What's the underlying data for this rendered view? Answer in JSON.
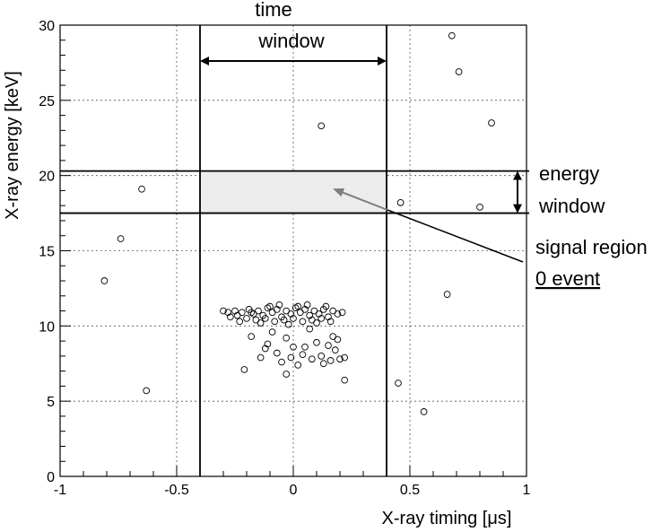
{
  "chart_data": {
    "type": "scatter",
    "xlabel": "X-ray timing [μs]",
    "ylabel": "X-ray energy [keV]",
    "xlim": [
      -1,
      1
    ],
    "ylim": [
      0,
      30
    ],
    "x_ticks": [
      -1,
      -0.5,
      0,
      0.5,
      1
    ],
    "y_ticks": [
      0,
      5,
      10,
      15,
      20,
      25,
      30
    ],
    "grid": true,
    "time_window": [
      -0.4,
      0.4
    ],
    "energy_window": [
      17.5,
      20.3
    ],
    "annotations": {
      "time_window": [
        "time",
        "window"
      ],
      "energy_window": [
        "energy",
        "window"
      ],
      "signal_region": [
        "signal region",
        "0 event"
      ]
    },
    "points": [
      {
        "x": 0.68,
        "y": 29.3
      },
      {
        "x": 0.71,
        "y": 26.9
      },
      {
        "x": 0.12,
        "y": 23.3
      },
      {
        "x": 0.85,
        "y": 23.5
      },
      {
        "x": -0.65,
        "y": 19.1
      },
      {
        "x": 0.46,
        "y": 18.2
      },
      {
        "x": 0.8,
        "y": 17.9
      },
      {
        "x": -0.74,
        "y": 15.8
      },
      {
        "x": -0.81,
        "y": 13.0
      },
      {
        "x": 0.66,
        "y": 12.1
      },
      {
        "x": -0.63,
        "y": 5.7
      },
      {
        "x": 0.45,
        "y": 6.2
      },
      {
        "x": 0.56,
        "y": 4.3
      },
      {
        "x": -0.28,
        "y": 10.9
      },
      {
        "x": -0.25,
        "y": 11.0
      },
      {
        "x": -0.22,
        "y": 10.9
      },
      {
        "x": -0.19,
        "y": 11.1
      },
      {
        "x": -0.17,
        "y": 10.8
      },
      {
        "x": -0.15,
        "y": 11.0
      },
      {
        "x": -0.13,
        "y": 10.7
      },
      {
        "x": -0.11,
        "y": 11.2
      },
      {
        "x": -0.09,
        "y": 10.9
      },
      {
        "x": -0.07,
        "y": 11.1
      },
      {
        "x": -0.05,
        "y": 10.6
      },
      {
        "x": -0.03,
        "y": 11.0
      },
      {
        "x": -0.01,
        "y": 10.8
      },
      {
        "x": 0.01,
        "y": 11.2
      },
      {
        "x": 0.03,
        "y": 10.9
      },
      {
        "x": 0.05,
        "y": 11.1
      },
      {
        "x": 0.07,
        "y": 10.7
      },
      {
        "x": 0.09,
        "y": 11.0
      },
      {
        "x": 0.11,
        "y": 10.8
      },
      {
        "x": 0.13,
        "y": 11.1
      },
      {
        "x": 0.15,
        "y": 10.6
      },
      {
        "x": 0.17,
        "y": 11.0
      },
      {
        "x": 0.19,
        "y": 10.8
      },
      {
        "x": -0.2,
        "y": 10.5
      },
      {
        "x": -0.16,
        "y": 10.4
      },
      {
        "x": -0.12,
        "y": 10.5
      },
      {
        "x": -0.08,
        "y": 10.3
      },
      {
        "x": -0.04,
        "y": 10.4
      },
      {
        "x": 0.0,
        "y": 10.5
      },
      {
        "x": 0.04,
        "y": 10.3
      },
      {
        "x": 0.08,
        "y": 10.4
      },
      {
        "x": 0.12,
        "y": 10.5
      },
      {
        "x": -0.1,
        "y": 11.3
      },
      {
        "x": -0.06,
        "y": 11.4
      },
      {
        "x": 0.02,
        "y": 11.3
      },
      {
        "x": 0.06,
        "y": 11.4
      },
      {
        "x": -0.24,
        "y": 10.7
      },
      {
        "x": 0.21,
        "y": 10.9
      },
      {
        "x": -0.3,
        "y": 11.0
      },
      {
        "x": -0.27,
        "y": 10.6
      },
      {
        "x": 0.16,
        "y": 10.3
      },
      {
        "x": -0.14,
        "y": 10.2
      },
      {
        "x": 0.1,
        "y": 10.2
      },
      {
        "x": -0.02,
        "y": 10.1
      },
      {
        "x": 0.14,
        "y": 11.3
      },
      {
        "x": -0.18,
        "y": 10.9
      },
      {
        "x": -0.23,
        "y": 10.3
      },
      {
        "x": -0.11,
        "y": 8.8
      },
      {
        "x": -0.03,
        "y": 9.2
      },
      {
        "x": 0.05,
        "y": 8.6
      },
      {
        "x": 0.1,
        "y": 8.9
      },
      {
        "x": 0.15,
        "y": 8.7
      },
      {
        "x": 0.18,
        "y": 8.4
      },
      {
        "x": -0.07,
        "y": 8.2
      },
      {
        "x": -0.01,
        "y": 7.9
      },
      {
        "x": 0.04,
        "y": 8.1
      },
      {
        "x": 0.08,
        "y": 7.8
      },
      {
        "x": 0.12,
        "y": 8.0
      },
      {
        "x": 0.16,
        "y": 7.7
      },
      {
        "x": 0.2,
        "y": 7.8
      },
      {
        "x": -0.14,
        "y": 7.9
      },
      {
        "x": -0.05,
        "y": 7.6
      },
      {
        "x": 0.02,
        "y": 7.4
      },
      {
        "x": -0.09,
        "y": 9.6
      },
      {
        "x": 0.07,
        "y": 9.8
      },
      {
        "x": -0.18,
        "y": 9.3
      },
      {
        "x": 0.19,
        "y": 9.1
      },
      {
        "x": 0.13,
        "y": 7.5
      },
      {
        "x": -0.21,
        "y": 7.1
      },
      {
        "x": -0.03,
        "y": 6.8
      },
      {
        "x": 0.22,
        "y": 6.4
      },
      {
        "x": -0.12,
        "y": 8.5
      },
      {
        "x": 0.0,
        "y": 8.6
      },
      {
        "x": 0.17,
        "y": 9.3
      },
      {
        "x": 0.22,
        "y": 7.9
      }
    ]
  }
}
